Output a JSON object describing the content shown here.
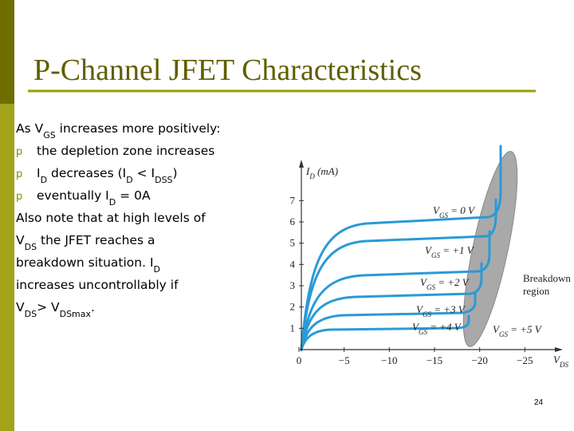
{
  "title": "P-Channel JFET Characteristics",
  "body": {
    "lines": [
      {
        "runs": [
          {
            "t": "As V"
          },
          {
            "sub": "GS"
          },
          {
            "t": " increases more positively:"
          }
        ]
      },
      {
        "bullet": "p",
        "runs": [
          {
            "t": "the depletion zone increases"
          }
        ]
      },
      {
        "bullet": "p",
        "runs": [
          {
            "t": "I"
          },
          {
            "sub": "D"
          },
          {
            "t": " decreases (I"
          },
          {
            "sub": "D"
          },
          {
            "t": " < I"
          },
          {
            "sub": "DSS"
          },
          {
            "t": ")"
          }
        ]
      },
      {
        "bullet": "p",
        "runs": [
          {
            "t": "eventually I"
          },
          {
            "sub": "D"
          },
          {
            "t": " = 0A"
          }
        ]
      },
      {
        "runs": [
          {
            "t": "Also note that at high levels of"
          }
        ]
      },
      {
        "runs": [
          {
            "t": "V"
          },
          {
            "sub": "DS"
          },
          {
            "t": " the JFET reaches a"
          }
        ]
      },
      {
        "runs": [
          {
            "t": "breakdown situation. I"
          },
          {
            "sub": "D"
          }
        ]
      },
      {
        "runs": [
          {
            "t": "increases uncontrollably if"
          }
        ]
      },
      {
        "runs": [
          {
            "t": "V"
          },
          {
            "sub": "DS"
          },
          {
            "t": "> V"
          },
          {
            "sub": "DSmax"
          },
          {
            "t": "."
          }
        ]
      }
    ]
  },
  "chart": {
    "y_label": {
      "runs": [
        {
          "t": "I"
        },
        {
          "sub": "D"
        },
        {
          "t": " (mA)"
        }
      ]
    },
    "x_label": {
      "runs": [
        {
          "t": "V"
        },
        {
          "sub": "DS"
        }
      ]
    },
    "xlim": [
      0,
      -28.5
    ],
    "ylim": [
      0,
      7.8
    ],
    "xticks": [
      0,
      {
        "value": -5,
        "label": "−5"
      },
      {
        "value": -10,
        "label": "−10"
      },
      {
        "value": -15,
        "label": "−15"
      },
      {
        "value": -20,
        "label": "−20"
      },
      {
        "value": -25,
        "label": "−25"
      }
    ],
    "yticks": [
      1,
      2,
      3,
      4,
      5,
      6,
      7
    ],
    "curve_labels": [
      {
        "runs": [
          {
            "t": "V"
          },
          {
            "sub": "GS"
          },
          {
            "t": " = 0 V"
          }
        ]
      },
      {
        "runs": [
          {
            "t": "V"
          },
          {
            "sub": "GS"
          },
          {
            "t": " = +1 V"
          }
        ]
      },
      {
        "runs": [
          {
            "t": "V"
          },
          {
            "sub": "GS"
          },
          {
            "t": " = +2 V"
          }
        ]
      },
      {
        "runs": [
          {
            "t": "V"
          },
          {
            "sub": "GS"
          },
          {
            "t": " = +3 V"
          }
        ]
      },
      {
        "runs": [
          {
            "t": "V"
          },
          {
            "sub": "GS"
          },
          {
            "t": " = +4 V"
          }
        ]
      },
      {
        "runs": [
          {
            "t": "V"
          },
          {
            "sub": "GS"
          },
          {
            "t": " = +5 V"
          }
        ]
      }
    ],
    "region_label": [
      "Breakdown",
      "region"
    ]
  },
  "page_number": "24"
}
